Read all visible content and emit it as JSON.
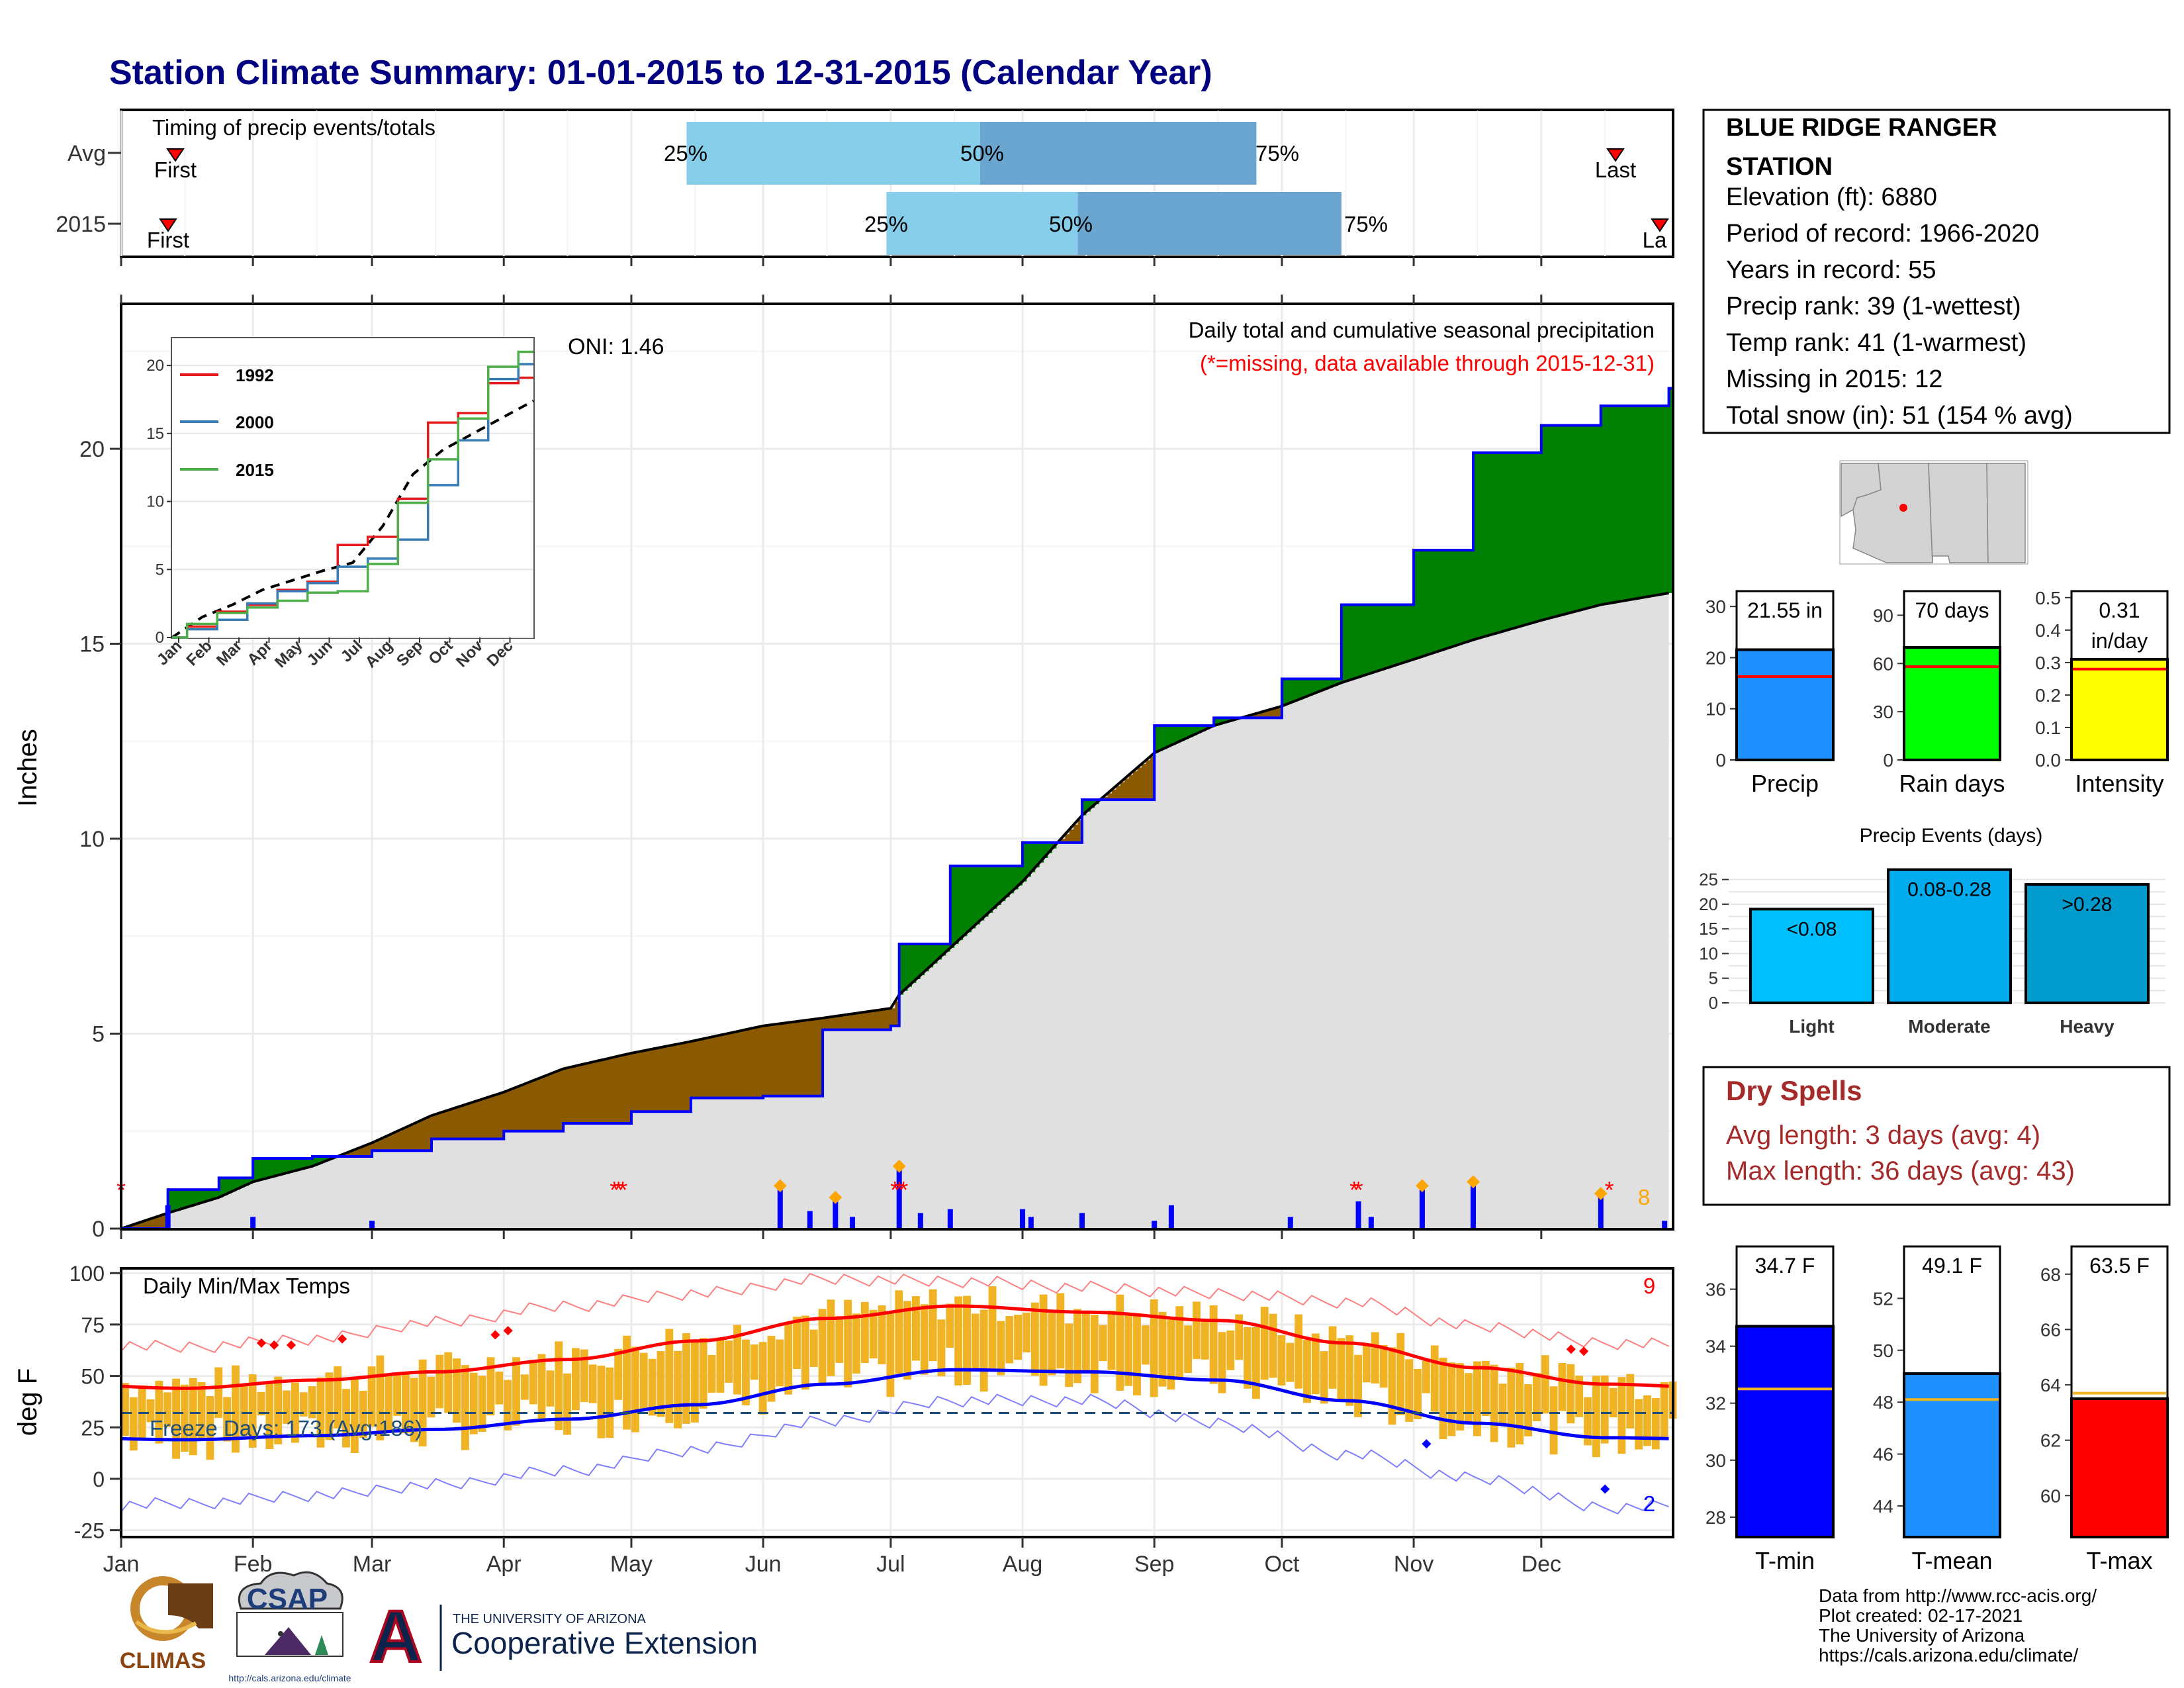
{
  "title": "Station Climate Summary: 01-01-2015 to 12-31-2015 (Calendar Year)",
  "colors": {
    "title": "#000080",
    "cum_current": "#0000ff",
    "cum_avg": "#000000",
    "surplus": "#008000",
    "deficit": "#8b5a00",
    "area_avg": "#e0e0e0",
    "bars": "#0000ff",
    "dry_spells": "#a52a2a",
    "missing": "#ff0000",
    "temp_bars": "#f0b323",
    "tmax_avg": "#ff0000",
    "tmin_avg": "#0000ff",
    "freeze_line": "#1f4e79",
    "timing_light": "#87ceeb",
    "timing_dark": "#6aa6cf",
    "precip_bar": "#1e90ff",
    "raindays_bar": "#00ff00",
    "intensity_bar": "#ffff00",
    "light_bar": "#00bfff",
    "moderate_bar": "#00acee",
    "heavy_bar": "#009acd",
    "tmin_bar": "#0000ff",
    "tmean_bar": "#1e90ff",
    "tmax_bar": "#ff0000"
  },
  "timing": {
    "caption": "Timing of precip events/totals",
    "rows": [
      {
        "label": "Avg",
        "p25_date": "2015-05-14",
        "p50_date": "2015-07-22",
        "p75_date": "2015-09-25",
        "first_label": "First",
        "last_label": "Last",
        "p25_label": "25%",
        "p50_label": "50%",
        "p75_label": "75%"
      },
      {
        "label": "2015",
        "p25_date": "2015-06-30",
        "p50_date": "2015-08-14",
        "p75_date": "2015-10-15",
        "first_label": "First",
        "last_label": "La",
        "p25_label": "25%",
        "p50_label": "50%",
        "p75_label": "75%"
      }
    ]
  },
  "precip_panel": {
    "ylabel": "Inches",
    "oni": "ONI: 1.46",
    "caption": "Daily total and cumulative seasonal precipitation",
    "missing_note": "(*=missing, data available through 2015-12-31)",
    "missing_count": "8",
    "yticks": [
      "0",
      "5",
      "10",
      "15",
      "20"
    ]
  },
  "inset": {
    "yticks": [
      "0",
      "5",
      "10",
      "15",
      "20"
    ],
    "months": [
      "Jan",
      "Feb",
      "Mar",
      "Apr",
      "May",
      "Jun",
      "Jul",
      "Aug",
      "Sep",
      "Oct",
      "Nov",
      "Dec"
    ],
    "legend": [
      {
        "name": "1992",
        "color": "#e41a1c"
      },
      {
        "name": "2000",
        "color": "#377eb8"
      },
      {
        "name": "2015",
        "color": "#4daf4a"
      }
    ]
  },
  "temp_panel": {
    "ylabel": "deg F",
    "caption": "Daily Min/Max Temps",
    "freeze_text": "Freeze Days: 173 (Avg:186)",
    "record_high_count": "9",
    "record_low_count": "2",
    "yticks": [
      "-25",
      "0",
      "25",
      "50",
      "75",
      "100"
    ]
  },
  "months": [
    "Jan",
    "Feb",
    "Mar",
    "Apr",
    "May",
    "Jun",
    "Jul",
    "Aug",
    "Sep",
    "Oct",
    "Nov",
    "Dec"
  ],
  "station": {
    "name_line1": "BLUE RIDGE RANGER",
    "name_line2": "STATION",
    "lines": [
      "Elevation (ft): 6880",
      "Period of record: 1966-2020",
      "Years in record: 55",
      "Precip rank: 39 (1-wettest)",
      "Temp rank: 41 (1-warmest)",
      "Missing in 2015: 12",
      "Total snow (in): 51 (154 % avg)"
    ]
  },
  "summary_bars": [
    {
      "label": "Precip",
      "value_text": "21.55 in",
      "yticks": [
        "0",
        "10",
        "20",
        "30"
      ]
    },
    {
      "label": "Rain days",
      "value_text": "70 days",
      "yticks": [
        "0",
        "30",
        "60",
        "90"
      ]
    },
    {
      "label": "Intensity",
      "value_text": "0.31",
      "value_text2": "in/day",
      "yticks": [
        "0.0",
        "0.1",
        "0.2",
        "0.3",
        "0.4",
        "0.5"
      ]
    }
  ],
  "events": {
    "title": "Precip Events (days)",
    "yticks": [
      "0",
      "5",
      "10",
      "15",
      "20",
      "25"
    ],
    "bars": [
      {
        "label": "Light",
        "range": "<0.08"
      },
      {
        "label": "Moderate",
        "range": "0.08-0.28"
      },
      {
        "label": "Heavy",
        "range": ">0.28"
      }
    ]
  },
  "dry_spells": {
    "title": "Dry Spells",
    "avg": "Avg length: 3 days (avg: 4)",
    "max": "Max length: 36 days (avg: 43)"
  },
  "temp_bars": [
    {
      "label": "T-min",
      "value_text": "34.7 F",
      "yticks": [
        "28",
        "30",
        "32",
        "34",
        "36"
      ]
    },
    {
      "label": "T-mean",
      "value_text": "49.1 F",
      "yticks": [
        "44",
        "46",
        "48",
        "50",
        "52"
      ]
    },
    {
      "label": "T-max",
      "value_text": "63.5 F",
      "yticks": [
        "60",
        "62",
        "64",
        "66",
        "68"
      ]
    }
  ],
  "footer": {
    "lines": [
      "Data from http://www.rcc-acis.org/",
      "Plot created: 02-17-2021",
      "The University of Arizona",
      "https://cals.arizona.edu/climate/"
    ],
    "climas": "CLIMAS",
    "csap": "CSAP",
    "csap_url": "http://cals.arizona.edu/climate",
    "ua_small": "THE UNIVERSITY OF ARIZONA",
    "ua_big": "Cooperative Extension",
    "ua_letter": "A"
  },
  "chart_data": [
    {
      "type": "area",
      "title": "Daily total and cumulative seasonal precipitation",
      "ylabel": "Inches",
      "ylim": [
        0,
        23.7
      ],
      "x": [
        "2015-01-01",
        "2015-01-12",
        "2015-01-24",
        "2015-02-01",
        "2015-02-15",
        "2015-03-01",
        "2015-03-15",
        "2015-04-01",
        "2015-04-15",
        "2015-05-01",
        "2015-05-15",
        "2015-06-01",
        "2015-06-15",
        "2015-07-01",
        "2015-07-03",
        "2015-07-15",
        "2015-08-01",
        "2015-08-15",
        "2015-09-01",
        "2015-09-15",
        "2015-10-01",
        "2015-10-15",
        "2015-11-01",
        "2015-11-15",
        "2015-12-01",
        "2015-12-15",
        "2015-12-31"
      ],
      "series": [
        {
          "name": "2015",
          "values": [
            0,
            1.0,
            1.3,
            1.8,
            1.85,
            2.0,
            2.3,
            2.5,
            2.7,
            3.0,
            3.35,
            3.4,
            5.1,
            5.2,
            7.3,
            9.3,
            9.9,
            11.0,
            12.9,
            13.1,
            14.1,
            16.0,
            17.4,
            19.9,
            20.6,
            21.1,
            21.55
          ]
        },
        {
          "name": "Avg",
          "values": [
            0,
            0.4,
            0.8,
            1.2,
            1.6,
            2.2,
            2.9,
            3.5,
            4.1,
            4.5,
            4.8,
            5.2,
            5.4,
            5.65,
            6.0,
            7.2,
            8.9,
            10.6,
            12.2,
            12.9,
            13.4,
            14.0,
            14.6,
            15.1,
            15.6,
            16.0,
            16.3
          ]
        }
      ]
    },
    {
      "type": "bar",
      "title": "Daily precipitation",
      "x": [
        "2015-01-12",
        "2015-02-01",
        "2015-03-01",
        "2015-06-05",
        "2015-06-12",
        "2015-06-18",
        "2015-06-22",
        "2015-07-03",
        "2015-07-08",
        "2015-07-15",
        "2015-08-01",
        "2015-08-03",
        "2015-08-15",
        "2015-09-01",
        "2015-09-05",
        "2015-10-03",
        "2015-10-19",
        "2015-10-22",
        "2015-11-03",
        "2015-11-15",
        "2015-12-15",
        "2015-12-30"
      ],
      "values": [
        0.6,
        0.3,
        0.2,
        1.1,
        0.45,
        0.8,
        0.3,
        1.6,
        0.4,
        0.5,
        0.5,
        0.3,
        0.4,
        0.2,
        0.6,
        0.3,
        0.7,
        0.3,
        1.1,
        1.2,
        0.9,
        0.2
      ]
    },
    {
      "type": "line",
      "title": "Cumulative precipitation comparison",
      "ylim": [
        0,
        22
      ],
      "categories": [
        "Jan",
        "Feb",
        "Mar",
        "Apr",
        "May",
        "Jun",
        "Jul",
        "Aug",
        "Sep",
        "Oct",
        "Nov",
        "Dec"
      ],
      "series": [
        {
          "name": "1992",
          "values": [
            0.8,
            1.9,
            2.4,
            3.5,
            4.1,
            6.8,
            7.4,
            10.2,
            15.8,
            16.5,
            18.7,
            19.1
          ]
        },
        {
          "name": "2000",
          "values": [
            0.6,
            1.3,
            2.5,
            3.4,
            4.0,
            5.2,
            5.8,
            7.2,
            11.2,
            14.5,
            19.0,
            20.1
          ]
        },
        {
          "name": "2015",
          "values": [
            1.0,
            1.8,
            2.2,
            2.7,
            3.3,
            3.4,
            5.4,
            9.9,
            13.1,
            16.1,
            19.9,
            21.0
          ]
        }
      ]
    },
    {
      "type": "line",
      "title": "Daily Min/Max Temps",
      "ylabel": "deg F",
      "ylim": [
        -28,
        102
      ],
      "categories": [
        "Jan",
        "Feb",
        "Mar",
        "Apr",
        "May",
        "Jun",
        "Jul",
        "Aug",
        "Sep",
        "Oct",
        "Nov",
        "Dec"
      ],
      "series": [
        {
          "name": "Avg max",
          "values": [
            44,
            48,
            52,
            58,
            67,
            78,
            84,
            81,
            77,
            66,
            54,
            46
          ]
        },
        {
          "name": "Avg min",
          "values": [
            19,
            21,
            24,
            29,
            36,
            46,
            53,
            52,
            48,
            38,
            27,
            20
          ]
        },
        {
          "name": "Record max",
          "values": [
            64,
            68,
            76,
            84,
            90,
            97,
            96,
            93,
            90,
            86,
            74,
            66
          ]
        },
        {
          "name": "Record min",
          "values": [
            -12,
            -8,
            -3,
            4,
            14,
            28,
            38,
            38,
            27,
            12,
            0,
            -14
          ]
        }
      ]
    },
    {
      "type": "bar",
      "title": "Summary",
      "categories": [
        "Precip",
        "Rain days",
        "Intensity"
      ],
      "values": [
        21.55,
        70,
        0.31
      ],
      "averages": [
        16.3,
        58,
        0.28
      ],
      "ylim": [
        [
          0,
          33
        ],
        [
          0,
          105
        ],
        [
          0,
          0.52
        ]
      ]
    },
    {
      "type": "bar",
      "title": "Precip Events (days)",
      "categories": [
        "Light",
        "Moderate",
        "Heavy"
      ],
      "values": [
        19,
        27,
        24
      ],
      "ylim": [
        0,
        27.5
      ]
    },
    {
      "type": "bar",
      "title": "Temperature",
      "categories": [
        "T-min",
        "T-mean",
        "T-max"
      ],
      "values": [
        34.7,
        49.1,
        63.5
      ],
      "averages": [
        32.5,
        48.1,
        63.7
      ],
      "ylim": [
        [
          27.3,
          37.5
        ],
        [
          42.8,
          54.0
        ],
        [
          58.5,
          69.0
        ]
      ]
    }
  ]
}
